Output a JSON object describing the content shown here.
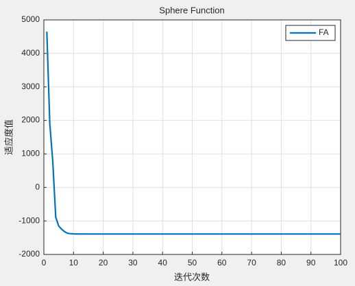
{
  "chart_data": {
    "type": "line",
    "title": "Sphere Function",
    "xlabel": "迭代次数",
    "ylabel": "适应度值",
    "x": [
      1,
      2,
      3,
      4,
      5,
      6,
      7,
      8,
      9,
      10,
      11,
      12,
      13,
      14,
      15,
      16,
      17,
      18,
      19,
      20,
      21,
      22,
      23,
      24,
      25,
      26,
      27,
      28,
      29,
      30,
      31,
      32,
      33,
      34,
      35,
      36,
      37,
      38,
      39,
      40,
      41,
      42,
      43,
      44,
      45,
      46,
      47,
      48,
      49,
      50,
      51,
      52,
      53,
      54,
      55,
      56,
      57,
      58,
      59,
      60,
      61,
      62,
      63,
      64,
      65,
      66,
      67,
      68,
      69,
      70,
      71,
      72,
      73,
      74,
      75,
      76,
      77,
      78,
      79,
      80,
      81,
      82,
      83,
      84,
      85,
      86,
      87,
      88,
      89,
      90,
      91,
      92,
      93,
      94,
      95,
      96,
      97,
      98,
      99,
      100
    ],
    "series": [
      {
        "name": "FA",
        "color": "#0072bd",
        "values": [
          4650,
          1900,
          780,
          -890,
          -1150,
          -1250,
          -1320,
          -1370,
          -1380,
          -1385,
          -1388,
          -1390,
          -1390,
          -1390,
          -1390,
          -1390,
          -1390,
          -1390,
          -1390,
          -1390,
          -1390,
          -1390,
          -1390,
          -1390,
          -1390,
          -1390,
          -1390,
          -1390,
          -1390,
          -1390,
          -1390,
          -1390,
          -1390,
          -1390,
          -1390,
          -1390,
          -1390,
          -1390,
          -1390,
          -1390,
          -1390,
          -1390,
          -1390,
          -1390,
          -1390,
          -1390,
          -1390,
          -1390,
          -1390,
          -1390,
          -1390,
          -1390,
          -1390,
          -1390,
          -1390,
          -1390,
          -1390,
          -1390,
          -1390,
          -1390,
          -1390,
          -1390,
          -1390,
          -1390,
          -1390,
          -1390,
          -1390,
          -1390,
          -1390,
          -1390,
          -1390,
          -1390,
          -1390,
          -1390,
          -1390,
          -1390,
          -1390,
          -1390,
          -1390,
          -1390,
          -1390,
          -1390,
          -1390,
          -1390,
          -1390,
          -1390,
          -1390,
          -1390,
          -1390,
          -1390,
          -1390,
          -1390,
          -1390,
          -1390,
          -1390,
          -1390,
          -1390,
          -1390,
          -1390,
          -1390
        ]
      }
    ],
    "xlim": [
      0,
      100
    ],
    "xticks": [
      0,
      10,
      20,
      30,
      40,
      50,
      60,
      70,
      80,
      90,
      100
    ],
    "ylim": [
      -2000,
      5000
    ],
    "yticks": [
      -2000,
      -1000,
      0,
      1000,
      2000,
      3000,
      4000,
      5000
    ],
    "grid": true,
    "legend": "upper right"
  }
}
